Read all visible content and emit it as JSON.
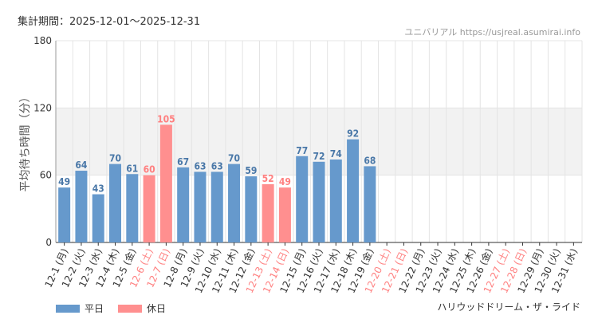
{
  "header": {
    "period_label": "集計期間：2025-12-01～2025-12-31",
    "site_label": "ユニバリアル  https://usjreal.asumirai.info"
  },
  "footer": {
    "ride_name": "ハリウッドドリーム・ザ・ライド"
  },
  "colors": {
    "weekday": "#6699cc",
    "holiday": "#ff8f8f",
    "holiday_label": "#ff8080",
    "band": "#f2f2f2",
    "grid": "#e4e4e4"
  },
  "legend": [
    {
      "label": "平日",
      "kind": "weekday"
    },
    {
      "label": "休日",
      "kind": "holiday"
    }
  ],
  "chart_data": {
    "type": "bar",
    "title": "",
    "xlabel": "",
    "ylabel": "平均待ち時間（分）",
    "ylim": [
      0,
      180
    ],
    "yticks": [
      0,
      60,
      120,
      180
    ],
    "grid": true,
    "legend_position": "bottom-left",
    "categories": [
      "12-1 (月)",
      "12-2 (火)",
      "12-3 (水)",
      "12-4 (木)",
      "12-5 (金)",
      "12-6 (土)",
      "12-7 (日)",
      "12-8 (月)",
      "12-9 (火)",
      "12-10 (水)",
      "12-11 (木)",
      "12-12 (金)",
      "12-13 (土)",
      "12-14 (日)",
      "12-15 (月)",
      "12-16 (火)",
      "12-17 (水)",
      "12-18 (木)",
      "12-19 (金)",
      "12-20 (土)",
      "12-21 (日)",
      "12-22 (月)",
      "12-23 (火)",
      "12-24 (水)",
      "12-25 (木)",
      "12-26 (金)",
      "12-27 (土)",
      "12-28 (日)",
      "12-29 (月)",
      "12-30 (火)",
      "12-31 (水)"
    ],
    "day_type": [
      "weekday",
      "weekday",
      "weekday",
      "weekday",
      "weekday",
      "holiday",
      "holiday",
      "weekday",
      "weekday",
      "weekday",
      "weekday",
      "weekday",
      "holiday",
      "holiday",
      "weekday",
      "weekday",
      "weekday",
      "weekday",
      "weekday",
      "holiday",
      "holiday",
      "weekday",
      "weekday",
      "weekday",
      "weekday",
      "weekday",
      "holiday",
      "holiday",
      "weekday",
      "weekday",
      "weekday"
    ],
    "values": [
      49,
      64,
      43,
      70,
      61,
      60,
      105,
      67,
      63,
      63,
      70,
      59,
      52,
      49,
      77,
      72,
      74,
      92,
      68,
      null,
      null,
      null,
      null,
      null,
      null,
      null,
      null,
      null,
      null,
      null,
      null
    ]
  }
}
